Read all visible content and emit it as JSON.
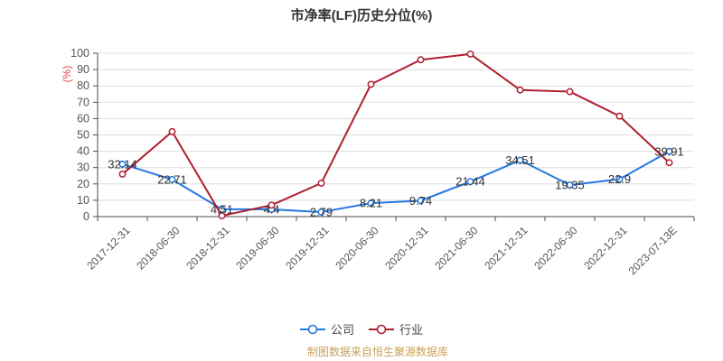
{
  "chart_data": {
    "type": "line",
    "title": "市净率(LF)历史分位(%)",
    "ylabel": "(%)",
    "xlabel": "",
    "ylim": [
      0,
      100
    ],
    "ytick_step": 10,
    "grid": true,
    "legend_position": "bottom",
    "x_label_rotation": -45,
    "categories": [
      "2017-12-31",
      "2018-06-30",
      "2018-12-31",
      "2019-06-30",
      "2019-12-31",
      "2020-06-30",
      "2020-12-31",
      "2021-06-30",
      "2021-12-31",
      "2022-06-30",
      "2022-12-31",
      "2023-07-13E"
    ],
    "series": [
      {
        "name": "公司",
        "color": "#2478e0",
        "marker": "open-circle",
        "labels_visible": true,
        "values": [
          32.14,
          22.71,
          4.51,
          4.4,
          2.79,
          8.21,
          9.74,
          21.44,
          34.51,
          19.35,
          22.9,
          39.91
        ]
      },
      {
        "name": "行业",
        "color": "#af1f2d",
        "marker": "open-circle",
        "labels_visible": false,
        "values": [
          26,
          52,
          0.5,
          7,
          20.5,
          81,
          96,
          99.5,
          77.5,
          76.5,
          61.5,
          33
        ]
      }
    ],
    "footer": "制图数据来自恒生聚源数据库",
    "colors": {
      "footer_text": "#c9a05a",
      "ylabel_text": "#e04545",
      "data_label": "#333333",
      "axis_line": "#4d4d4d",
      "tick_label": "#555555",
      "grid_line": "#dddddd",
      "marker_fill": "#ffffff"
    }
  }
}
